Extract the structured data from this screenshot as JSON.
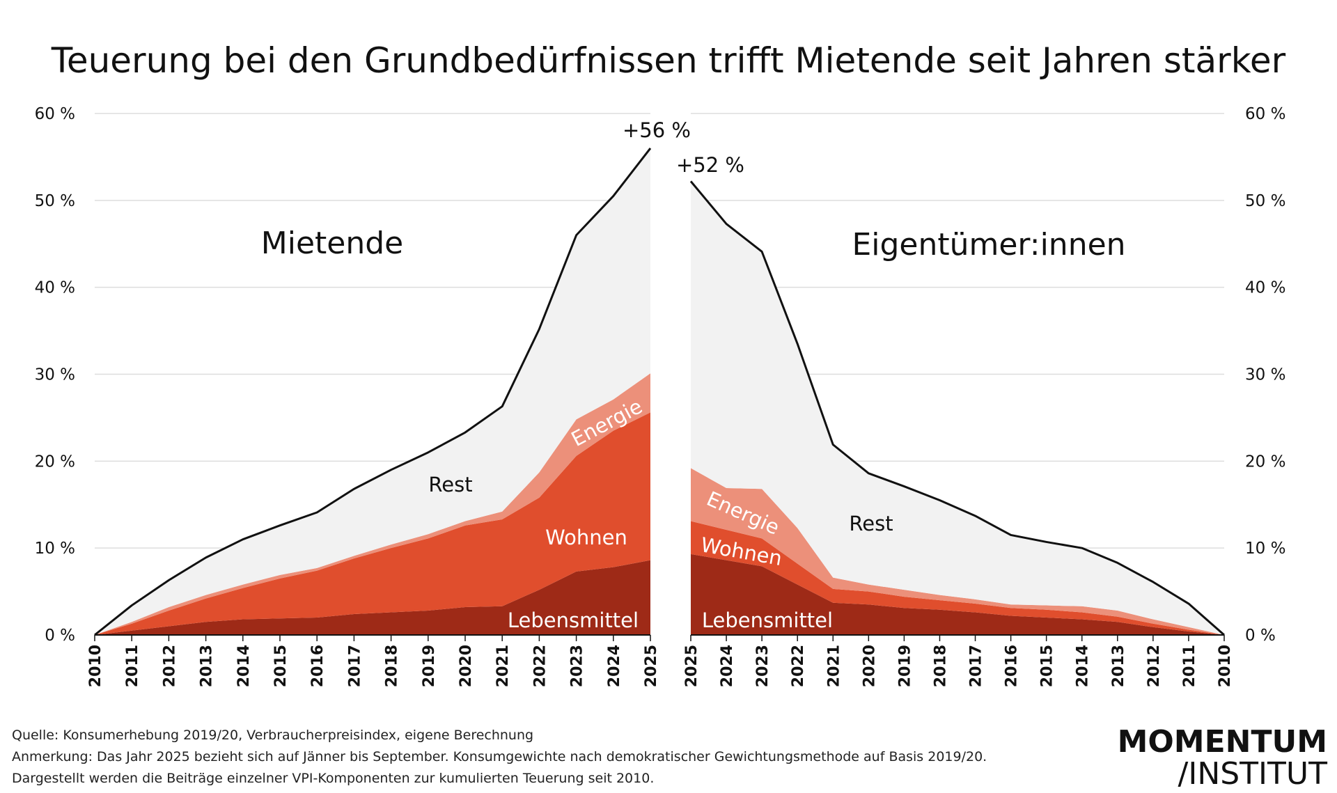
{
  "title": "Teuerung bei den Grundbedürfnissen trifft Mietende seit Jahren stärker",
  "colors": {
    "Lebensmittel": "#9e2a17",
    "Wohnen": "#e04e2d",
    "Energie": "#ec907a",
    "Rest": "#f2f2f2",
    "line": "#111111",
    "grid": "#dddddd"
  },
  "chart_data": [
    {
      "type": "area",
      "stacked": true,
      "title": "Mietende",
      "categories": [
        "2010",
        "2011",
        "2012",
        "2013",
        "2014",
        "2015",
        "2016",
        "2017",
        "2018",
        "2019",
        "2020",
        "2021",
        "2022",
        "2023",
        "2024",
        "2025"
      ],
      "series": [
        {
          "name": "Lebensmittel",
          "values": [
            0,
            0.5,
            1.0,
            1.5,
            1.8,
            1.9,
            2.0,
            2.4,
            2.6,
            2.8,
            3.2,
            3.3,
            5.2,
            7.3,
            7.8,
            8.6
          ]
        },
        {
          "name": "Wohnen",
          "values": [
            0,
            0.8,
            1.8,
            2.7,
            3.6,
            4.6,
            5.4,
            6.4,
            7.4,
            8.3,
            9.4,
            10.0,
            10.6,
            13.3,
            15.7,
            17.0
          ]
        },
        {
          "name": "Energie",
          "values": [
            0,
            0.2,
            0.4,
            0.4,
            0.4,
            0.4,
            0.3,
            0.3,
            0.4,
            0.5,
            0.5,
            0.9,
            2.9,
            4.2,
            3.6,
            4.5
          ]
        },
        {
          "name": "Rest",
          "values": [
            0,
            1.9,
            3.1,
            4.3,
            5.2,
            5.7,
            6.4,
            7.7,
            8.6,
            9.4,
            10.2,
            12.1,
            16.5,
            21.2,
            23.4,
            25.9
          ]
        }
      ],
      "total_label": "+56 %",
      "yticks": [
        "0 %",
        "10 %",
        "20 %",
        "30 %",
        "40 %",
        "50 %",
        "60 %"
      ],
      "ylim": [
        0,
        60
      ],
      "yaxis": "left",
      "grid": true
    },
    {
      "type": "area",
      "stacked": true,
      "title": "Eigentümer:innen",
      "categories": [
        "2025",
        "2024",
        "2023",
        "2022",
        "2021",
        "2020",
        "2019",
        "2018",
        "2017",
        "2016",
        "2015",
        "2014",
        "2013",
        "2012",
        "2011",
        "2010"
      ],
      "series": [
        {
          "name": "Lebensmittel",
          "values": [
            9.3,
            8.6,
            7.9,
            5.8,
            3.7,
            3.5,
            3.1,
            2.9,
            2.6,
            2.2,
            2.0,
            1.8,
            1.5,
            0.9,
            0.4,
            0
          ]
        },
        {
          "name": "Wohnen",
          "values": [
            3.8,
            3.5,
            3.2,
            2.4,
            1.6,
            1.5,
            1.3,
            1.1,
            1.0,
            0.9,
            0.9,
            0.8,
            0.6,
            0.4,
            0.2,
            0
          ]
        },
        {
          "name": "Energie",
          "values": [
            6.1,
            4.8,
            5.7,
            4.1,
            1.3,
            0.8,
            0.8,
            0.6,
            0.5,
            0.4,
            0.5,
            0.7,
            0.7,
            0.5,
            0.3,
            0
          ]
        },
        {
          "name": "Rest",
          "values": [
            33.0,
            30.4,
            27.3,
            21.2,
            15.3,
            12.8,
            11.9,
            10.9,
            9.6,
            8.0,
            7.3,
            6.7,
            5.5,
            4.3,
            2.7,
            0
          ]
        }
      ],
      "total_label": "+52 %",
      "yticks": [
        "0 %",
        "10 %",
        "20 %",
        "30 %",
        "40 %",
        "50 %",
        "60 %"
      ],
      "ylim": [
        0,
        60
      ],
      "yaxis": "right",
      "grid": true
    }
  ],
  "footer": {
    "source": "Quelle: Konsumerhebung 2019/20, Verbraucherpreisindex, eigene Berechnung",
    "note": "Anmerkung:  Das Jahr 2025 bezieht sich auf Jänner bis September. Konsumgewichte nach demokratischer Gewichtungsmethode auf Basis 2019/20.",
    "note2": "Dargestellt werden die Beiträge einzelner VPI-Komponenten zur kumulierten Teuerung seit 2010."
  },
  "logo": {
    "line1": "MOMENTUM",
    "line2": "/INSTITUT"
  }
}
